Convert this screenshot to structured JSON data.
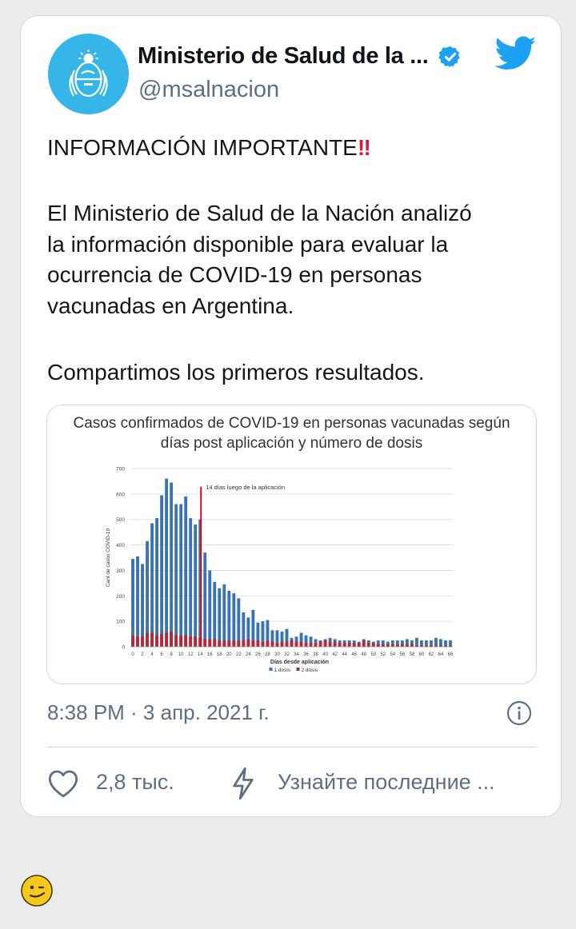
{
  "tweet": {
    "author_name": "Ministerio de Salud de la ...",
    "handle": "@msalnacion",
    "verified": true,
    "text_heading": "INFORMACIÓN IMPORTANTE",
    "text_heading_emoji": "‼",
    "text_body": "El Ministerio de Salud de la Nación analizó\nla información disponible para evaluar la\nocurrencia de COVID-19 en personas\nvacunadas en Argentina.",
    "text_footer": "Compartimos los primeros resultados.",
    "timestamp": "8:38 PM · 3 апр. 2021 г.",
    "likes": "2,8 тыс.",
    "learn_more": "Узнайте последние ...",
    "colors": {
      "accent": "#1da1f2",
      "muted": "#5b7083",
      "alert": "#d31f3d"
    }
  },
  "icons": [
    "verified-badge-icon",
    "twitter-bird-icon",
    "info-icon",
    "heart-icon",
    "lightning-icon",
    "smiley-icon"
  ],
  "chart_data": {
    "type": "bar",
    "title_line1": "Casos confirmados de COVID-19 en personas vacunadas según",
    "title_line2": "días post aplicación y número de dosis",
    "xlabel": "Días desde aplicación",
    "ylabel": "Cant de casos COVID-19",
    "ylim": [
      0,
      700
    ],
    "yticks": [
      0,
      100,
      200,
      300,
      400,
      500,
      600,
      700
    ],
    "xtick_labels": [
      "0",
      "2",
      "4",
      "6",
      "8",
      "10",
      "12",
      "14",
      "16",
      "18",
      "20",
      "22",
      "24",
      "26",
      "28",
      "30",
      "32",
      "34",
      "36",
      "38",
      "40",
      "42",
      "44",
      "46",
      "48",
      "50",
      "52",
      "54",
      "56",
      "58",
      "60",
      "62",
      "64",
      "66"
    ],
    "annotation": "14 días luego de la aplicación",
    "annotation_x": 14,
    "grid": true,
    "legend_position": "bottom",
    "colors": {
      "dose1": "#3a73b0",
      "dose2": "#b02a3a",
      "marker": "#c0142a"
    },
    "x": [
      0,
      1,
      2,
      3,
      4,
      5,
      6,
      7,
      8,
      9,
      10,
      11,
      12,
      13,
      14,
      15,
      16,
      17,
      18,
      19,
      20,
      21,
      22,
      23,
      24,
      25,
      26,
      27,
      28,
      29,
      30,
      31,
      32,
      33,
      34,
      35,
      36,
      37,
      38,
      39,
      40,
      41,
      42,
      43,
      44,
      45,
      46,
      47,
      48,
      49,
      50,
      51,
      52,
      53,
      54,
      55,
      56,
      57,
      58,
      59,
      60,
      61,
      62,
      63,
      64,
      65,
      66
    ],
    "series": [
      {
        "name": "1 dosis",
        "values": [
          345,
          355,
          325,
          415,
          485,
          505,
          595,
          660,
          645,
          560,
          560,
          590,
          505,
          480,
          500,
          370,
          300,
          255,
          230,
          245,
          220,
          210,
          190,
          135,
          115,
          145,
          95,
          100,
          105,
          65,
          65,
          60,
          70,
          35,
          40,
          55,
          45,
          40,
          30,
          25,
          30,
          35,
          30,
          25,
          25,
          25,
          25,
          20,
          30,
          25,
          20,
          25,
          25,
          20,
          25,
          25,
          25,
          30,
          25,
          35,
          25,
          25,
          25,
          35,
          30,
          25,
          25
        ]
      },
      {
        "name": "2 dosis",
        "values": [
          45,
          40,
          40,
          55,
          55,
          45,
          50,
          55,
          60,
          45,
          45,
          45,
          40,
          40,
          35,
          30,
          30,
          30,
          25,
          25,
          25,
          25,
          25,
          25,
          30,
          25,
          25,
          20,
          25,
          20,
          15,
          20,
          20,
          25,
          20,
          20,
          15,
          15,
          15,
          20,
          25,
          20,
          20,
          15,
          15,
          15,
          15,
          15,
          25,
          15,
          15,
          10,
          10,
          10,
          10,
          10,
          10,
          10,
          10,
          5,
          5,
          5,
          5,
          5,
          5,
          5,
          5
        ]
      }
    ]
  }
}
